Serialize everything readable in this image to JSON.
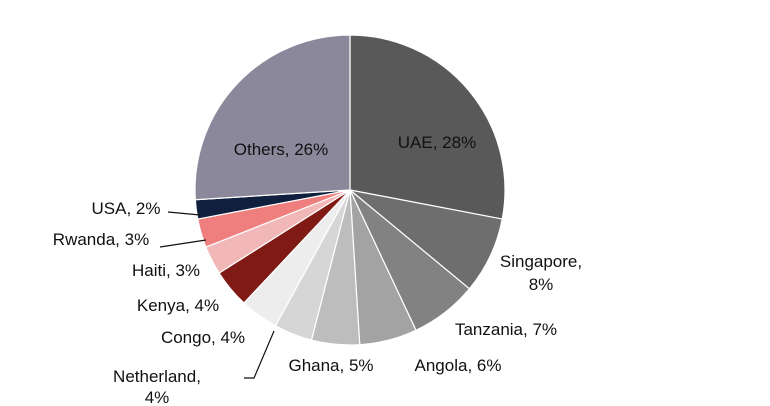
{
  "chart_data": {
    "type": "pie",
    "title": "",
    "slices": [
      {
        "label": "UAE",
        "value": 28,
        "text": "UAE, 28%",
        "color": "#595959"
      },
      {
        "label": "Singapore",
        "value": 8,
        "text": "Singapore,",
        "text2": "8%",
        "color": "#6e6e6e"
      },
      {
        "label": "Tanzania",
        "value": 7,
        "text": "Tanzania, 7%",
        "color": "#828282"
      },
      {
        "label": "Angola",
        "value": 6,
        "text": "Angola, 6%",
        "color": "#a3a3a3"
      },
      {
        "label": "Ghana",
        "value": 5,
        "text": "Ghana, 5%",
        "color": "#bdbdbd"
      },
      {
        "label": "Netherland",
        "value": 4,
        "text": "Netherland,",
        "text2": "4%",
        "color": "#d6d6d6"
      },
      {
        "label": "Congo",
        "value": 4,
        "text": "Congo, 4%",
        "color": "#ededed"
      },
      {
        "label": "Kenya",
        "value": 4,
        "text": "Kenya, 4%",
        "color": "#801a14"
      },
      {
        "label": "Haiti",
        "value": 3,
        "text": "Haiti, 3%",
        "color": "#f2b8b8"
      },
      {
        "label": "Rwanda",
        "value": 3,
        "text": "Rwanda, 3%",
        "color": "#ef7e7e"
      },
      {
        "label": "USA",
        "value": 2,
        "text": "USA, 2%",
        "color": "#0f1f3d"
      },
      {
        "label": "Others",
        "value": 26,
        "text": "Others, 26%",
        "color": "#8a889a"
      }
    ]
  }
}
